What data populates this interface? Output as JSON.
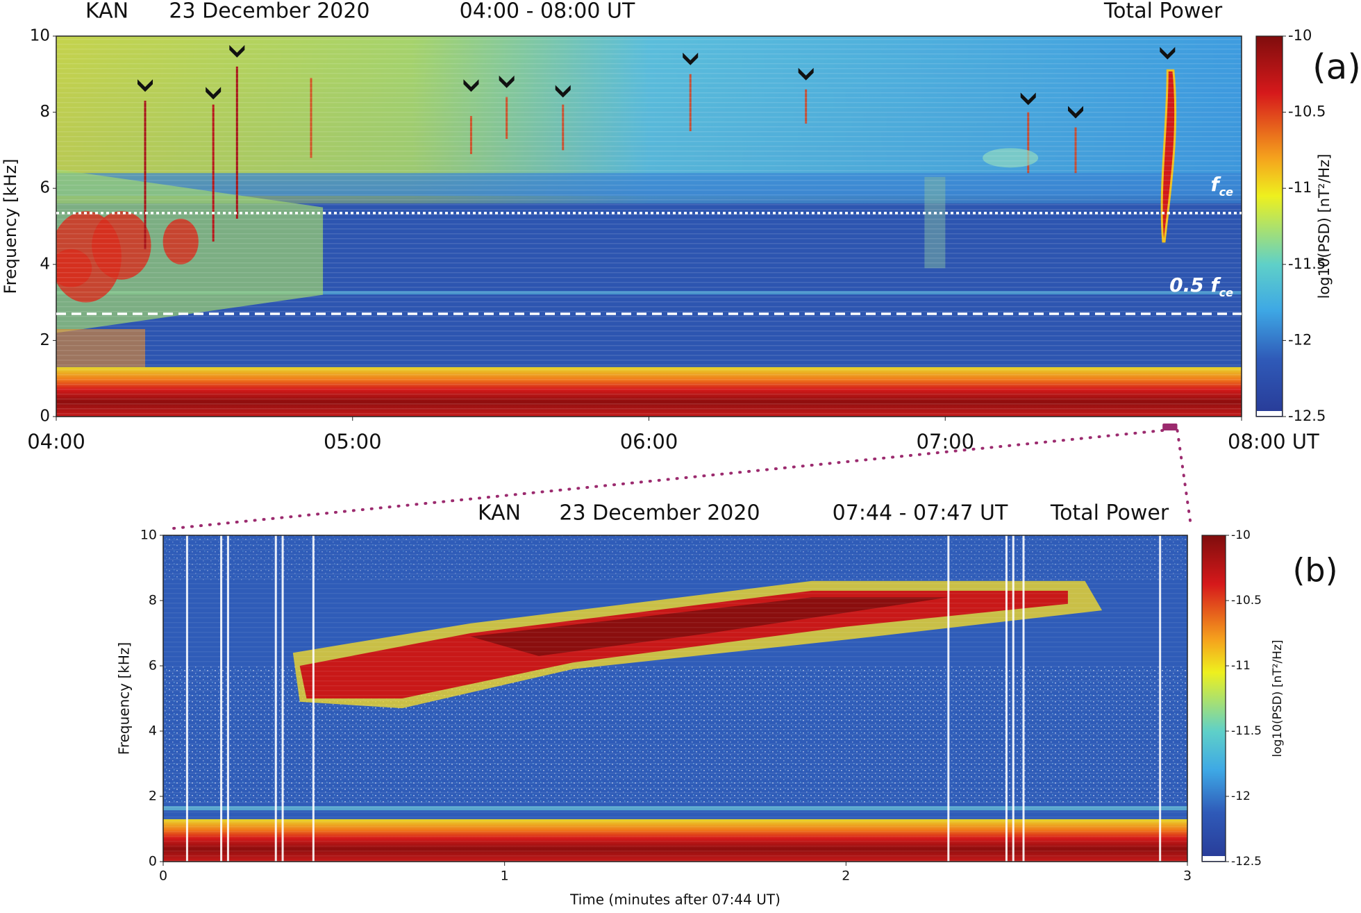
{
  "chart_data": [
    {
      "type": "spectrogram",
      "title": [
        "KAN",
        "23 December 2020",
        "04:00 - 08:00 UT",
        "Total Power"
      ],
      "panel_label": "(a)",
      "y_label": "Frequency [kHz]",
      "xlim": [
        4,
        8
      ],
      "xticks": [
        {
          "value": 4,
          "label": "04:00"
        },
        {
          "value": 5,
          "label": "05:00"
        },
        {
          "value": 6,
          "label": "06:00"
        },
        {
          "value": 7,
          "label": "07:00"
        },
        {
          "value": 8,
          "label": "08:00 UT"
        }
      ],
      "ylim": [
        0,
        10
      ],
      "yticks": [
        0,
        2,
        4,
        6,
        8,
        10
      ],
      "colorbar_label": "log10(PSD) [nT²/Hz]",
      "clim": [
        -12.5,
        -10
      ],
      "cticks": [
        -10,
        -10.5,
        -11,
        -11.5,
        -12,
        -12.5
      ],
      "reference_lines": [
        {
          "value": 5.35,
          "style": "dotted",
          "text": "f",
          "sub": "ce"
        },
        {
          "value": 2.7,
          "style": "dashed",
          "text": "0.5 f",
          "sub": "ce"
        }
      ],
      "markers": {
        "x": [
          4.3,
          4.53,
          4.61,
          5.4,
          5.52,
          5.71,
          6.14,
          6.53,
          7.28,
          7.44,
          7.75
        ],
        "y": [
          8.7,
          8.5,
          9.6,
          8.7,
          8.8,
          8.55,
          9.4,
          9.0,
          8.35,
          8.0,
          9.55
        ]
      },
      "highlight_range": [
        7.7333,
        7.7833
      ],
      "highlight_color": "#9b2a6e"
    },
    {
      "type": "spectrogram",
      "title": [
        "KAN",
        "23 December 2020",
        "07:44 - 07:47 UT",
        "Total Power"
      ],
      "panel_label": "(b)",
      "x_label": "Time (minutes after 07:44 UT)",
      "y_label": "Frequency [kHz]",
      "xlim": [
        0,
        3
      ],
      "xticks": [
        0,
        1,
        2,
        3
      ],
      "ylim": [
        0,
        10
      ],
      "yticks": [
        0,
        2,
        4,
        6,
        8,
        10
      ],
      "colorbar_label": "log10(PSD) [nT²/Hz]",
      "clim": [
        -12.5,
        -10
      ],
      "cticks": [
        -10,
        -10.5,
        -11,
        -11.5,
        -12,
        -12.5
      ]
    }
  ]
}
